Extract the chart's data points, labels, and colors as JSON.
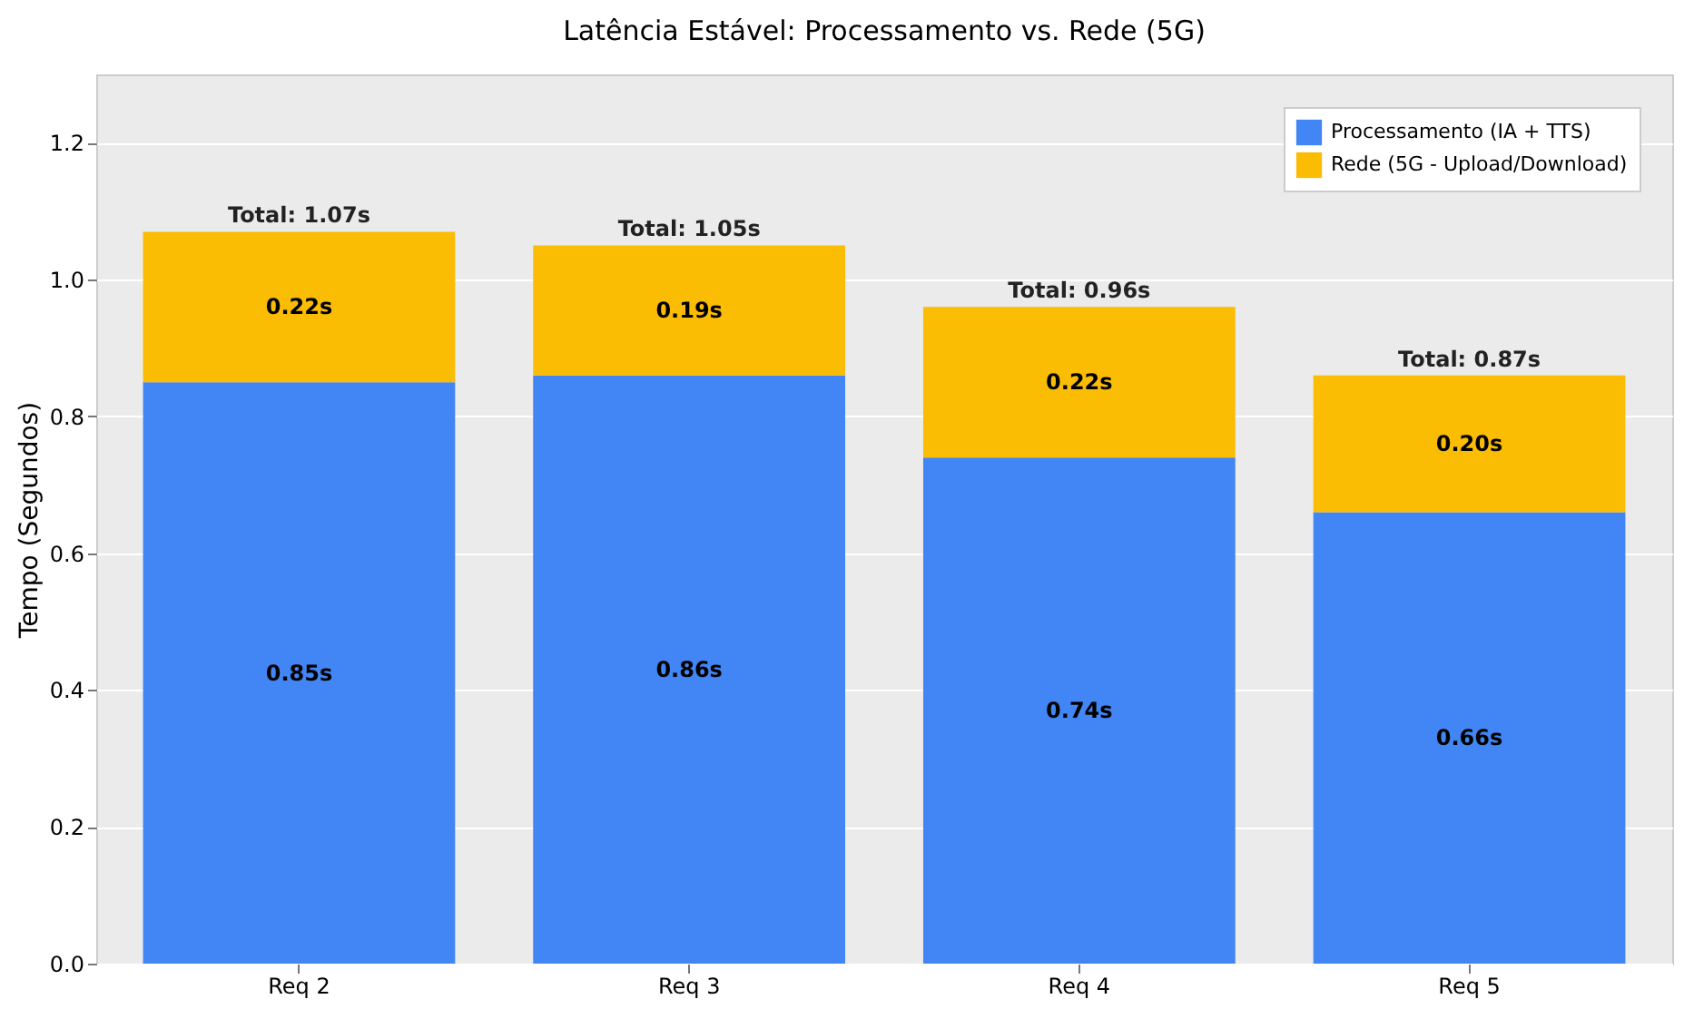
{
  "chart_data": {
    "type": "bar",
    "title": "Latência Estável: Processamento vs. Rede (5G)",
    "ylabel": "Tempo (Segundos)",
    "categories": [
      "Req 2",
      "Req 3",
      "Req 4",
      "Req 5"
    ],
    "series": [
      {
        "name": "Processamento (IA + TTS)",
        "color": "#4285f4",
        "values": [
          0.85,
          0.86,
          0.74,
          0.66
        ],
        "value_labels": [
          "0.85s",
          "0.86s",
          "0.74s",
          "0.66s"
        ]
      },
      {
        "name": "Rede (5G - Upload/Download)",
        "color": "#fbbc04",
        "values": [
          0.22,
          0.19,
          0.22,
          0.2
        ],
        "value_labels": [
          "0.22s",
          "0.19s",
          "0.22s",
          "0.20s"
        ]
      }
    ],
    "stacked": true,
    "totals": [
      "Total: 1.07s",
      "Total: 1.05s",
      "Total: 0.96s",
      "Total: 0.87s"
    ],
    "ylim": [
      0,
      1.3
    ],
    "yticks": [
      {
        "value": 0,
        "label": "0.0"
      },
      {
        "value": 0.2,
        "label": "0.2"
      },
      {
        "value": 0.4,
        "label": "0.4"
      },
      {
        "value": 0.6,
        "label": "0.6"
      },
      {
        "value": 0.8,
        "label": "0.8"
      },
      {
        "value": 1,
        "label": "1.0"
      },
      {
        "value": 1.2,
        "label": "1.2"
      }
    ],
    "grid": true,
    "legend": "top right"
  }
}
